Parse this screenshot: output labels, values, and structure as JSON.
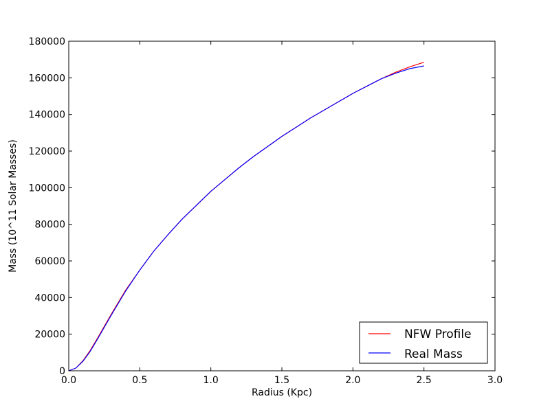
{
  "chart_data": {
    "type": "line",
    "xlabel": "Radius (Kpc)",
    "ylabel": "Mass (10^11 Solar Masses)",
    "xlim": [
      0.0,
      3.0
    ],
    "ylim": [
      0,
      180000
    ],
    "xticks": [
      0.0,
      0.5,
      1.0,
      1.5,
      2.0,
      2.5,
      3.0
    ],
    "xtick_labels": [
      "0.0",
      "0.5",
      "1.0",
      "1.5",
      "2.0",
      "2.5",
      "3.0"
    ],
    "yticks": [
      0,
      20000,
      40000,
      60000,
      80000,
      100000,
      120000,
      140000,
      160000,
      180000
    ],
    "ytick_labels": [
      "0",
      "20000",
      "40000",
      "60000",
      "80000",
      "100000",
      "120000",
      "140000",
      "160000",
      "180000"
    ],
    "grid": false,
    "legend_position": "bottom-right",
    "series": [
      {
        "name": "NFW Profile",
        "color": "#ff0000",
        "x": [
          0.0,
          0.05,
          0.1,
          0.15,
          0.2,
          0.3,
          0.4,
          0.5,
          0.6,
          0.7,
          0.8,
          0.9,
          1.0,
          1.1,
          1.2,
          1.3,
          1.4,
          1.5,
          1.6,
          1.7,
          1.8,
          1.9,
          2.0,
          2.1,
          2.2,
          2.3,
          2.4,
          2.5
        ],
        "y": [
          0,
          1500,
          5500,
          11000,
          17500,
          31000,
          44000,
          55000,
          65500,
          74500,
          83000,
          90500,
          98000,
          104500,
          111000,
          117000,
          122500,
          128000,
          133000,
          138000,
          142500,
          147000,
          151500,
          155500,
          159500,
          163000,
          166000,
          168500
        ]
      },
      {
        "name": "Real Mass",
        "color": "#0000ff",
        "x": [
          0.0,
          0.05,
          0.1,
          0.15,
          0.2,
          0.3,
          0.4,
          0.5,
          0.6,
          0.7,
          0.8,
          0.9,
          1.0,
          1.1,
          1.2,
          1.3,
          1.4,
          1.5,
          1.6,
          1.7,
          1.8,
          1.9,
          2.0,
          2.1,
          2.2,
          2.3,
          2.4,
          2.5
        ],
        "y": [
          0,
          1500,
          5200,
          10500,
          17000,
          30500,
          43500,
          55000,
          65500,
          74500,
          83000,
          90500,
          98000,
          104500,
          111000,
          117000,
          122500,
          128000,
          133000,
          138000,
          142500,
          147000,
          151500,
          155500,
          159500,
          162500,
          165000,
          166500
        ]
      }
    ]
  }
}
